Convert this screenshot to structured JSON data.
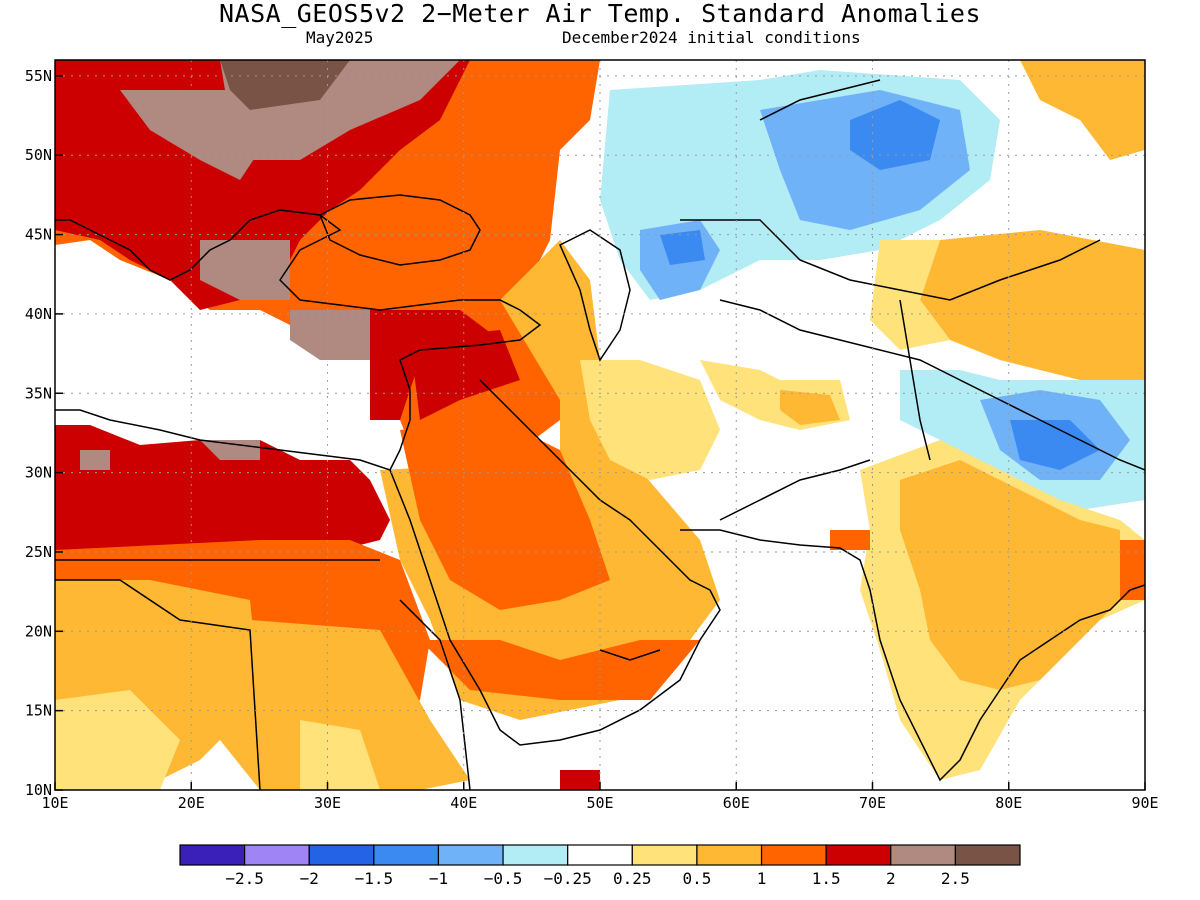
{
  "title": "NASA_GEOS5v2 2−Meter Air Temp. Standard Anomalies",
  "subtitle_left": "May2025",
  "subtitle_right": "December2024 initial conditions",
  "map": {
    "lon_range": [
      10,
      90
    ],
    "lat_range": [
      10,
      56
    ],
    "lon_ticks": [
      {
        "v": 10,
        "label": "10E"
      },
      {
        "v": 20,
        "label": "20E"
      },
      {
        "v": 30,
        "label": "30E"
      },
      {
        "v": 40,
        "label": "40E"
      },
      {
        "v": 50,
        "label": "50E"
      },
      {
        "v": 60,
        "label": "60E"
      },
      {
        "v": 70,
        "label": "70E"
      },
      {
        "v": 80,
        "label": "80E"
      },
      {
        "v": 90,
        "label": "90E"
      }
    ],
    "lat_ticks": [
      {
        "v": 10,
        "label": "10N"
      },
      {
        "v": 15,
        "label": "15N"
      },
      {
        "v": 20,
        "label": "20N"
      },
      {
        "v": 25,
        "label": "25N"
      },
      {
        "v": 30,
        "label": "30N"
      },
      {
        "v": 35,
        "label": "35N"
      },
      {
        "v": 40,
        "label": "40N"
      },
      {
        "v": 45,
        "label": "45N"
      },
      {
        "v": 50,
        "label": "50N"
      },
      {
        "v": 55,
        "label": "55N"
      }
    ],
    "grid": true
  },
  "colorbar": {
    "colors": [
      "#3a1fb8",
      "#9e84f5",
      "#2463e6",
      "#3a8af2",
      "#6fb2f7",
      "#b2ecf4",
      "#ffffff",
      "#ffe27a",
      "#ffb833",
      "#ff6400",
      "#cc0000",
      "#b08a80",
      "#7a5347"
    ],
    "labels": [
      "−2.5",
      "−2",
      "−1.5",
      "−1",
      "−0.5",
      "−0.25",
      "0.25",
      "0.5",
      "1",
      "1.5",
      "2",
      "2.5"
    ]
  }
}
